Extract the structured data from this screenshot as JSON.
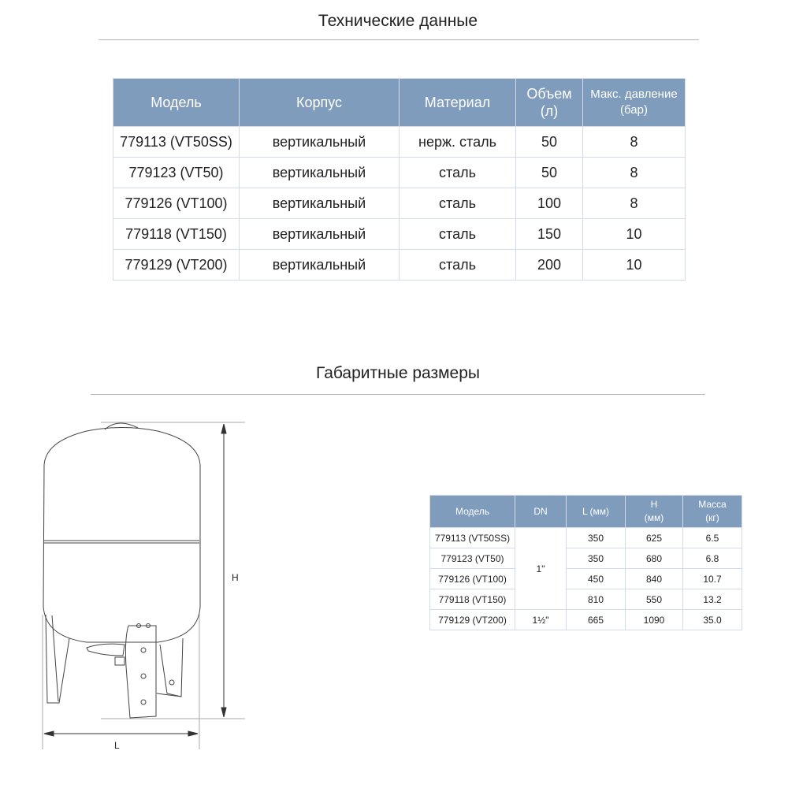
{
  "tech": {
    "title": "Технические данные",
    "headers": [
      "Модель",
      "Корпус",
      "Материал",
      "Объем (л)",
      "Макс. давление (бар)"
    ],
    "rows": [
      [
        "779113 (VT50SS)",
        "вертикальный",
        "нерж. сталь",
        "50",
        "8"
      ],
      [
        "779123 (VT50)",
        "вертикальный",
        "сталь",
        "50",
        "8"
      ],
      [
        "779126 (VT100)",
        "вертикальный",
        "сталь",
        "100",
        "8"
      ],
      [
        "779118 (VT150)",
        "вертикальный",
        "сталь",
        "150",
        "10"
      ],
      [
        "779129 (VT200)",
        "вертикальный",
        "сталь",
        "200",
        "10"
      ]
    ]
  },
  "dims": {
    "title": "Габаритные размеры",
    "headers": [
      "Модель",
      "DN",
      "L (мм)",
      "H (мм)",
      "Масса (кг)"
    ],
    "dn": [
      "1\"",
      "1½\""
    ],
    "rows": [
      [
        "779113 (VT50SS)",
        "350",
        "625",
        "6.5"
      ],
      [
        "779123 (VT50)",
        "350",
        "680",
        "6.8"
      ],
      [
        "779126 (VT100)",
        "450",
        "840",
        "10.7"
      ],
      [
        "779118 (VT150)",
        "810",
        "550",
        "13.2"
      ],
      [
        "779129 (VT200)",
        "665",
        "1090",
        "35.0"
      ]
    ]
  },
  "drawing": {
    "h_label": "H",
    "l_label": "L"
  },
  "colors": {
    "header": "#7f9cbd"
  }
}
